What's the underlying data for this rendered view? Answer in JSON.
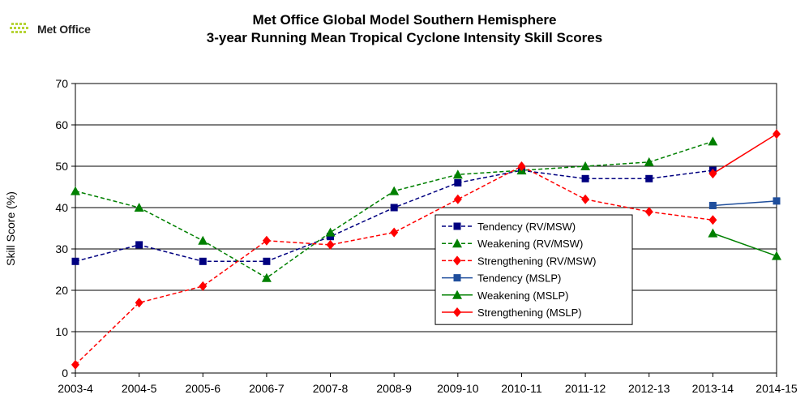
{
  "logo": {
    "text": "Met Office",
    "icon": "met-office-logo-icon"
  },
  "chart_data": {
    "type": "line",
    "title": "Met Office Global Model Southern Hemisphere",
    "subtitle": "3-year Running Mean Tropical Cyclone Intensity Skill Scores",
    "xlabel": "",
    "ylabel": "Skill Score (%)",
    "ylim": [
      0,
      70
    ],
    "yticks": [
      0,
      10,
      20,
      30,
      40,
      50,
      60,
      70
    ],
    "grid": true,
    "legend_position": "center-right",
    "categories": [
      "2003-4",
      "2004-5",
      "2005-6",
      "2006-7",
      "2007-8",
      "2008-9",
      "2009-10",
      "2010-11",
      "2011-12",
      "2012-13",
      "2013-14",
      "2014-15"
    ],
    "series": [
      {
        "name": "Tendency (RV/MSW)",
        "color": "#000080",
        "style": "dashed",
        "marker": "square",
        "values": [
          27,
          31,
          27,
          27,
          33,
          40,
          46,
          49,
          47,
          47,
          49,
          null
        ]
      },
      {
        "name": "Weakening  (RV/MSW)",
        "color": "#008000",
        "style": "dashed",
        "marker": "triangle",
        "values": [
          44,
          40,
          32,
          23,
          34,
          44,
          48,
          49,
          50,
          51,
          56,
          null
        ]
      },
      {
        "name": "Strengthening  (RV/MSW)",
        "color": "#ff0000",
        "style": "dashed",
        "marker": "diamond",
        "values": [
          2,
          17,
          21,
          32,
          31,
          34,
          42,
          50,
          42,
          39,
          37,
          null
        ]
      },
      {
        "name": "Tendency (MSLP)",
        "color": "#1f4e9c",
        "style": "solid",
        "marker": "square",
        "values": [
          null,
          null,
          null,
          null,
          null,
          null,
          null,
          null,
          null,
          null,
          40.5,
          41.6
        ]
      },
      {
        "name": "Weakening (MSLP)",
        "color": "#008000",
        "style": "solid",
        "marker": "triangle",
        "values": [
          null,
          null,
          null,
          null,
          null,
          null,
          null,
          null,
          null,
          null,
          33.8,
          28.3
        ]
      },
      {
        "name": "Strengthening (MSLP)",
        "color": "#ff0000",
        "style": "solid",
        "marker": "diamond",
        "values": [
          null,
          null,
          null,
          null,
          null,
          null,
          null,
          null,
          null,
          null,
          48.2,
          57.8
        ]
      }
    ]
  }
}
